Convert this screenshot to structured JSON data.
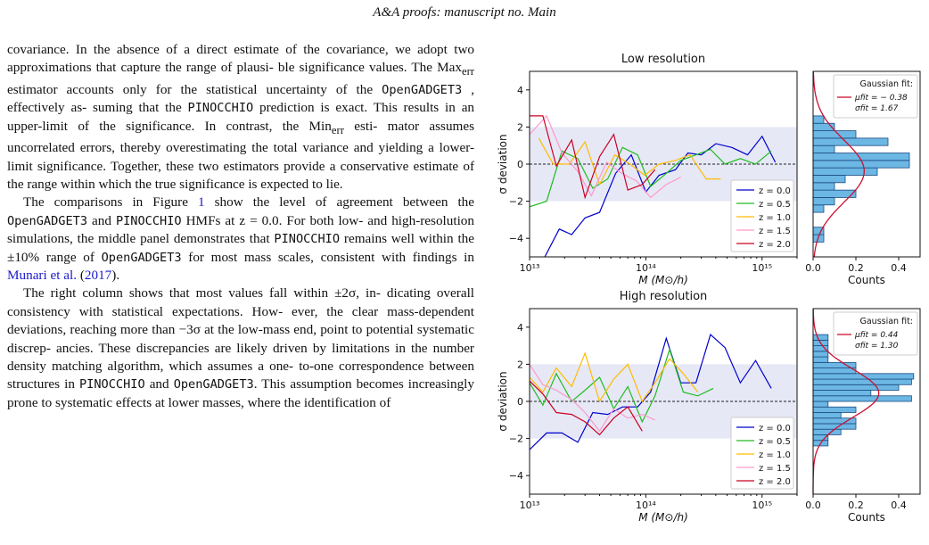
{
  "header": {
    "title": "A&A proofs: manuscript no. Main"
  },
  "text": {
    "p1": [
      "covariance. In the absence of a direct estimate of the covariance,",
      "we adopt two approximations that capture the range of plausi-",
      "ble significance values. The Max",
      "err",
      " estimator accounts only for",
      "the statistical uncertainty of the ",
      "OpenGADGET3",
      " , effectively as-",
      "suming that the ",
      "PINOCCHIO",
      " prediction is exact. This results in",
      "an upper-limit of the significance. In contrast, the Min",
      "err",
      " esti-",
      "mator assumes uncorrelated errors, thereby overestimating the",
      "total variance and yielding a lower-limit significance. Together,",
      "these two estimators provide a conservative estimate of the range",
      "within which the true significance is expected to lie."
    ],
    "p2": {
      "a": "The comparisons in Figure ",
      "fig_ref": "1",
      "b": " show the level of agreement",
      "c": "between the ",
      "code1": "OpenGADGET3",
      "d": " and ",
      "code2": "PINOCCHIO",
      "e": " HMFs at z = 0.0.",
      "f": "For both low- and high-resolution simulations, the middle panel",
      "g": "demonstrates that ",
      "code3": "PINOCCHIO",
      "h": " remains well within the ±10%",
      "i": "range of ",
      "code4": "OpenGADGET3",
      "j": " for most mass scales, consistent with",
      "k": "findings in ",
      "cite": "Munari et al.",
      "l": " (",
      "year": "2017",
      "m": ")."
    },
    "p3": {
      "a": "The right column shows that most values fall within ±2σ, in-",
      "b": "dicating overall consistency with statistical expectations. How-",
      "c": "ever, the clear mass-dependent deviations, reaching more than",
      "d": "−3σ at the low-mass end, point to potential systematic discrep-",
      "e": "ancies. These discrepancies are likely driven by limitations in",
      "f": "the number density matching algorithm, which assumes a one-",
      "g": "to-one correspondence between structures in ",
      "code1": "PINOCCHIO",
      "h": " and",
      "code2": "OpenGADGET3",
      "i": ". This assumption becomes increasingly prone to",
      "j": "systematic effects at lower masses, where the identification of"
    }
  },
  "colors": {
    "z0": "#0000cc",
    "z05": "#22bb22",
    "z10": "#ffbb00",
    "z15": "#ff99cc",
    "z20": "#cc0022",
    "hist_fill": "#6cb7e4",
    "hist_edge": "#1b4a80",
    "band": "#e6e8f6",
    "fit": "#cc1133"
  },
  "chart_data": [
    {
      "type": "line",
      "title": "Low resolution",
      "xlabel": "M (M⊙/h)",
      "ylabel": "σ deviation",
      "xscale": "log",
      "xlim": [
        10000000000000.0,
        2000000000000000.0
      ],
      "ylim": [
        -5,
        5
      ],
      "xticks": [
        "10¹³",
        "10¹⁴",
        "10¹⁵"
      ],
      "yticks": [
        "4",
        "2",
        "0",
        "−2",
        "−4"
      ],
      "band": [
        -2,
        2
      ],
      "legend_position": "bottom-right",
      "series": [
        {
          "name": "z = 0.0",
          "color_key": "z0",
          "x": [
            13000000000000.0,
            18000000000000.0,
            23000000000000.0,
            30000000000000.0,
            40000000000000.0,
            55000000000000.0,
            75000000000000.0,
            100000000000000.0,
            130000000000000.0,
            180000000000000.0,
            230000000000000.0,
            300000000000000.0,
            400000000000000.0,
            550000000000000.0,
            750000000000000.0,
            1000000000000000.0,
            1300000000000000.0
          ],
          "y": [
            -5.2,
            -3.5,
            -3.8,
            -2.9,
            -2.6,
            -0.5,
            0.5,
            -1.5,
            -0.6,
            -0.3,
            0.6,
            0.5,
            1.1,
            0.9,
            0.5,
            1.5,
            0.1
          ]
        },
        {
          "name": "z = 0.5",
          "color_key": "z05",
          "x": [
            10000000000000.0,
            14000000000000.0,
            19000000000000.0,
            26000000000000.0,
            35000000000000.0,
            47000000000000.0,
            63000000000000.0,
            85000000000000.0,
            110000000000000.0,
            150000000000000.0,
            200000000000000.0,
            270000000000000.0,
            360000000000000.0,
            480000000000000.0,
            650000000000000.0,
            880000000000000.0,
            1200000000000000.0
          ],
          "y": [
            -2.3,
            -2.0,
            0.7,
            0.3,
            -1.3,
            -0.8,
            0.9,
            0.5,
            -1.2,
            -0.5,
            0.2,
            0.5,
            0.8,
            0.0,
            0.3,
            0.0,
            0.7
          ]
        },
        {
          "name": "z = 1.0",
          "color_key": "z10",
          "x": [
            12000000000000.0,
            16000000000000.0,
            22000000000000.0,
            30000000000000.0,
            40000000000000.0,
            54000000000000.0,
            73000000000000.0,
            98000000000000.0,
            130000000000000.0,
            180000000000000.0,
            240000000000000.0,
            330000000000000.0,
            440000000000000.0
          ],
          "y": [
            1.4,
            0.0,
            0.0,
            1.2,
            -1.1,
            0.5,
            0.0,
            -0.6,
            0.0,
            0.2,
            0.5,
            -0.8,
            -0.8
          ]
        },
        {
          "name": "z = 1.5",
          "color_key": "z15",
          "x": [
            10000000000000.0,
            14000000000000.0,
            19000000000000.0,
            26000000000000.0,
            34000000000000.0,
            46000000000000.0,
            62000000000000.0,
            83000000000000.0,
            110000000000000.0,
            150000000000000.0,
            200000000000000.0
          ],
          "y": [
            1.6,
            2.6,
            0.6,
            -0.4,
            -1.7,
            0.1,
            -0.5,
            -0.9,
            -1.8,
            -1.1,
            -0.7
          ]
        },
        {
          "name": "z = 2.0",
          "color_key": "z20",
          "x": [
            10000000000000.0,
            13000000000000.0,
            17000000000000.0,
            23000000000000.0,
            30000000000000.0,
            40000000000000.0,
            53000000000000.0,
            70000000000000.0,
            93000000000000.0,
            120000000000000.0
          ],
          "y": [
            2.6,
            2.6,
            -0.1,
            1.3,
            -1.8,
            0.4,
            1.6,
            -1.4,
            -1.1,
            -0.3
          ]
        }
      ],
      "histogram": {
        "xlabel": "Counts",
        "xlim": [
          0,
          0.5
        ],
        "xticks": [
          "0.0",
          "0.2",
          "0.4"
        ],
        "bin_edges": [
          -4.2,
          -3.8,
          -3.4,
          -3.0,
          -2.6,
          -2.2,
          -1.8,
          -1.4,
          -1.0,
          -0.6,
          -0.2,
          0.2,
          0.6,
          1.0,
          1.4,
          1.8,
          2.2,
          2.6
        ],
        "densities": [
          0.05,
          0.05,
          0.0,
          0.0,
          0.05,
          0.1,
          0.2,
          0.1,
          0.15,
          0.3,
          0.45,
          0.45,
          0.1,
          0.35,
          0.2,
          0.1,
          0.05
        ],
        "fit_label": "Gaussian fit:",
        "fit_mu_label": "μfit = − 0.38",
        "fit_sigma_label": "σfit = 1.67",
        "mu": -0.38,
        "sigma": 1.67
      }
    },
    {
      "type": "line",
      "title": "High resolution",
      "xlabel": "M (M⊙/h)",
      "ylabel": "σ deviation",
      "xscale": "log",
      "xlim": [
        10000000000000.0,
        2000000000000000.0
      ],
      "ylim": [
        -5,
        5
      ],
      "xticks": [
        "10¹³",
        "10¹⁴",
        "10¹⁵"
      ],
      "yticks": [
        "4",
        "2",
        "0",
        "−2",
        "−4"
      ],
      "band": [
        -2,
        2
      ],
      "legend_position": "bottom-right",
      "series": [
        {
          "name": "z = 0.0",
          "color_key": "z0",
          "x": [
            10000000000000.0,
            14000000000000.0,
            19000000000000.0,
            26000000000000.0,
            35000000000000.0,
            47000000000000.0,
            63000000000000.0,
            85000000000000.0,
            110000000000000.0,
            150000000000000.0,
            200000000000000.0,
            270000000000000.0,
            360000000000000.0,
            480000000000000.0,
            650000000000000.0,
            880000000000000.0,
            1200000000000000.0
          ],
          "y": [
            -2.6,
            -1.7,
            -1.7,
            -2.2,
            -0.6,
            -0.7,
            -0.3,
            -0.3,
            0.5,
            3.4,
            1.0,
            1.0,
            3.6,
            2.9,
            1.0,
            2.2,
            0.7
          ]
        },
        {
          "name": "z = 0.5",
          "color_key": "z05",
          "x": [
            10000000000000.0,
            13000000000000.0,
            17000000000000.0,
            23000000000000.0,
            30000000000000.0,
            40000000000000.0,
            53000000000000.0,
            70000000000000.0,
            93000000000000.0,
            120000000000000.0,
            160000000000000.0,
            210000000000000.0,
            280000000000000.0,
            380000000000000.0
          ],
          "y": [
            1.0,
            -0.2,
            1.5,
            0.0,
            0.6,
            1.3,
            -0.4,
            0.8,
            -1.1,
            0.3,
            2.8,
            0.5,
            0.3,
            0.7
          ]
        },
        {
          "name": "z = 1.0",
          "color_key": "z10",
          "x": [
            10000000000000.0,
            13000000000000.0,
            17000000000000.0,
            23000000000000.0,
            30000000000000.0,
            40000000000000.0,
            53000000000000.0,
            70000000000000.0,
            93000000000000.0,
            120000000000000.0,
            160000000000000.0,
            210000000000000.0,
            280000000000000.0
          ],
          "y": [
            1.3,
            0.5,
            1.8,
            0.8,
            2.6,
            0.0,
            1.2,
            2.0,
            0.0,
            1.0,
            2.3,
            1.5,
            0.5
          ]
        },
        {
          "name": "z = 1.5",
          "color_key": "z15",
          "x": [
            10000000000000.0,
            13000000000000.0,
            17000000000000.0,
            23000000000000.0,
            30000000000000.0,
            40000000000000.0,
            53000000000000.0,
            70000000000000.0,
            93000000000000.0,
            120000000000000.0
          ],
          "y": [
            2.0,
            0.9,
            0.6,
            0.1,
            -0.6,
            -1.6,
            -0.4,
            -0.9,
            -0.7,
            -1.0
          ]
        },
        {
          "name": "z = 2.0",
          "color_key": "z20",
          "x": [
            10000000000000.0,
            13000000000000.0,
            17000000000000.0,
            23000000000000.0,
            30000000000000.0,
            40000000000000.0,
            53000000000000.0,
            70000000000000.0,
            93000000000000.0
          ],
          "y": [
            1.1,
            0.4,
            -0.6,
            -0.7,
            -1.1,
            -1.8,
            -0.9,
            -0.3,
            -1.6
          ]
        }
      ],
      "histogram": {
        "xlabel": "Counts",
        "xlim": [
          0,
          0.5
        ],
        "xticks": [
          "0.0",
          "0.2",
          "0.4"
        ],
        "bin_edges": [
          -2.4,
          -2.1,
          -1.8,
          -1.5,
          -1.2,
          -0.9,
          -0.6,
          -0.3,
          0.0,
          0.3,
          0.6,
          0.9,
          1.2,
          1.5,
          1.8,
          2.1,
          2.4,
          2.7,
          3.0,
          3.3,
          3.6
        ],
        "densities": [
          0.07,
          0.07,
          0.13,
          0.2,
          0.2,
          0.13,
          0.2,
          0.07,
          0.46,
          0.27,
          0.4,
          0.46,
          0.47,
          0.2,
          0.2,
          0.07,
          0.07,
          0.07,
          0.07,
          0.07
        ],
        "fit_label": "Gaussian fit:",
        "fit_mu_label": "μfit = 0.44",
        "fit_sigma_label": "σfit = 1.30",
        "mu": 0.44,
        "sigma": 1.3
      }
    }
  ]
}
